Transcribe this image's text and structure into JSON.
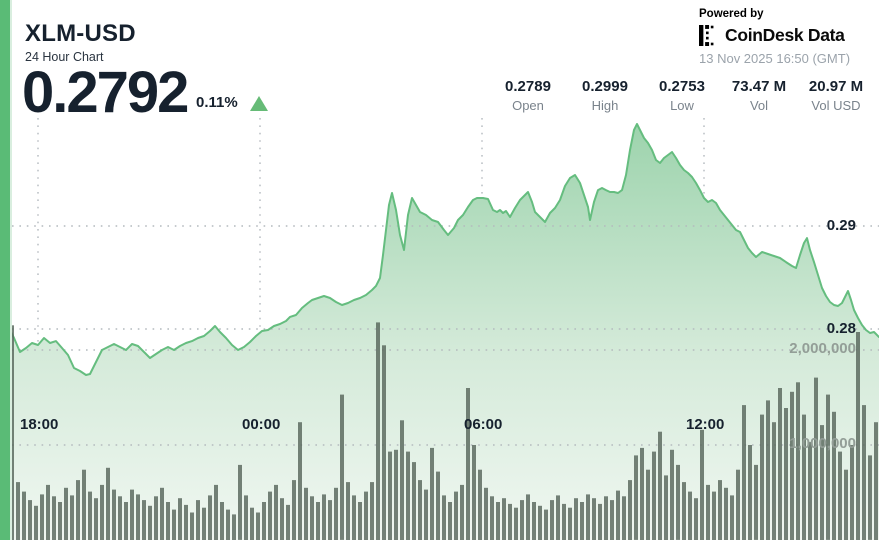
{
  "header": {
    "symbol": "XLM-USD",
    "subtitle": "24 Hour Chart",
    "price": "0.2792",
    "change_pct": "0.11%",
    "change_direction": "up",
    "powered_by": "Powered by",
    "brand": "CoinDesk Data",
    "timestamp": "13 Nov 2025 16:50 (GMT)"
  },
  "stats": [
    {
      "value": "0.2789",
      "label": "Open"
    },
    {
      "value": "0.2999",
      "label": "High"
    },
    {
      "value": "0.2753",
      "label": "Low"
    },
    {
      "value": "73.47 M",
      "label": "Vol"
    },
    {
      "value": "20.97 M",
      "label": "Vol USD"
    }
  ],
  "colors": {
    "accent_bar": "#5ABB76",
    "price_line": "#65BD7F",
    "area_top": "#9CD3AC",
    "area_mid": "#D4EAD9",
    "area_bottom": "#F0F7F1",
    "volume_bar": "rgba(88,102,92,0.82)",
    "grid": "#B4BABE",
    "text_dark": "#16212E",
    "text_gray": "#7A838C",
    "text_light_gray": "#9BA3AB",
    "up_triangle": "#66BB77"
  },
  "chart_data": {
    "type": "area",
    "title": "XLM-USD 24 Hour Chart",
    "open": 0.2789,
    "high": 0.2999,
    "low": 0.2753,
    "volume_total_millions": 73.47,
    "volume_usd_millions": 20.97,
    "grid": true,
    "legend": false,
    "price_axis": {
      "side": "right",
      "labels": [
        {
          "text": "0.29",
          "value": 0.29
        },
        {
          "text": "0.28",
          "value": 0.28
        }
      ]
    },
    "volume_axis": {
      "side": "right",
      "labels": [
        {
          "text": "2,000,000",
          "value_millions": 2
        },
        {
          "text": "1,000,000",
          "value_millions": 1
        }
      ]
    },
    "time_ticks": [
      "18:00",
      "00:00",
      "06:00",
      "12:00"
    ],
    "price_series": [
      [
        10,
        0.2799
      ],
      [
        14,
        0.27913
      ],
      [
        20,
        0.27777
      ],
      [
        26,
        0.27816
      ],
      [
        32,
        0.27864
      ],
      [
        38,
        0.27845
      ],
      [
        44,
        0.27913
      ],
      [
        50,
        0.27864
      ],
      [
        56,
        0.27883
      ],
      [
        62,
        0.27816
      ],
      [
        68,
        0.27748
      ],
      [
        74,
        0.27621
      ],
      [
        80,
        0.27592
      ],
      [
        86,
        0.27553
      ],
      [
        90,
        0.27563
      ],
      [
        96,
        0.2768
      ],
      [
        102,
        0.27796
      ],
      [
        108,
        0.27825
      ],
      [
        114,
        0.27854
      ],
      [
        120,
        0.27825
      ],
      [
        126,
        0.27796
      ],
      [
        132,
        0.27854
      ],
      [
        138,
        0.27835
      ],
      [
        144,
        0.27777
      ],
      [
        150,
        0.27718
      ],
      [
        156,
        0.27757
      ],
      [
        162,
        0.27796
      ],
      [
        168,
        0.27825
      ],
      [
        174,
        0.27796
      ],
      [
        180,
        0.27835
      ],
      [
        186,
        0.27864
      ],
      [
        192,
        0.27883
      ],
      [
        198,
        0.27913
      ],
      [
        204,
        0.27932
      ],
      [
        210,
        0.27981
      ],
      [
        215,
        0.28029
      ],
      [
        220,
        0.27971
      ],
      [
        226,
        0.27913
      ],
      [
        232,
        0.27845
      ],
      [
        238,
        0.27796
      ],
      [
        244,
        0.27825
      ],
      [
        250,
        0.27874
      ],
      [
        256,
        0.27932
      ],
      [
        262,
        0.27981
      ],
      [
        268,
        0.2799
      ],
      [
        274,
        0.28029
      ],
      [
        280,
        0.28049
      ],
      [
        286,
        0.28078
      ],
      [
        290,
        0.28117
      ],
      [
        296,
        0.28136
      ],
      [
        302,
        0.28204
      ],
      [
        308,
        0.28252
      ],
      [
        312,
        0.28282
      ],
      [
        318,
        0.28301
      ],
      [
        324,
        0.2832
      ],
      [
        330,
        0.28301
      ],
      [
        336,
        0.28262
      ],
      [
        342,
        0.28233
      ],
      [
        348,
        0.28252
      ],
      [
        354,
        0.28282
      ],
      [
        360,
        0.28301
      ],
      [
        366,
        0.2833
      ],
      [
        372,
        0.28379
      ],
      [
        376,
        0.28418
      ],
      [
        380,
        0.28495
      ],
      [
        383,
        0.28718
      ],
      [
        386,
        0.28961
      ],
      [
        389,
        0.29204
      ],
      [
        392,
        0.2932
      ],
      [
        396,
        0.29155
      ],
      [
        400,
        0.28913
      ],
      [
        404,
        0.28767
      ],
      [
        408,
        0.29107
      ],
      [
        412,
        0.29272
      ],
      [
        416,
        0.29204
      ],
      [
        420,
        0.29136
      ],
      [
        426,
        0.29107
      ],
      [
        432,
        0.29058
      ],
      [
        438,
        0.29039
      ],
      [
        444,
        0.28961
      ],
      [
        448,
        0.28913
      ],
      [
        454,
        0.28981
      ],
      [
        458,
        0.29058
      ],
      [
        463,
        0.29107
      ],
      [
        468,
        0.29184
      ],
      [
        473,
        0.29252
      ],
      [
        477,
        0.29272
      ],
      [
        483,
        0.29272
      ],
      [
        488,
        0.29262
      ],
      [
        493,
        0.29155
      ],
      [
        497,
        0.29136
      ],
      [
        500,
        0.29155
      ],
      [
        503,
        0.29126
      ],
      [
        506,
        0.29146
      ],
      [
        510,
        0.29087
      ],
      [
        515,
        0.29175
      ],
      [
        520,
        0.29252
      ],
      [
        524,
        0.29291
      ],
      [
        528,
        0.2933
      ],
      [
        532,
        0.29233
      ],
      [
        535,
        0.29136
      ],
      [
        540,
        0.29087
      ],
      [
        545,
        0.29039
      ],
      [
        550,
        0.29126
      ],
      [
        555,
        0.29175
      ],
      [
        560,
        0.29252
      ],
      [
        565,
        0.29388
      ],
      [
        570,
        0.29466
      ],
      [
        575,
        0.29495
      ],
      [
        580,
        0.29417
      ],
      [
        584,
        0.29301
      ],
      [
        588,
        0.29184
      ],
      [
        590,
        0.29058
      ],
      [
        594,
        0.29233
      ],
      [
        598,
        0.29349
      ],
      [
        602,
        0.29369
      ],
      [
        606,
        0.29349
      ],
      [
        610,
        0.2933
      ],
      [
        614,
        0.2933
      ],
      [
        618,
        0.2932
      ],
      [
        622,
        0.29349
      ],
      [
        626,
        0.29495
      ],
      [
        630,
        0.29738
      ],
      [
        634,
        0.29932
      ],
      [
        637,
        0.2999
      ],
      [
        640,
        0.29932
      ],
      [
        644,
        0.29854
      ],
      [
        648,
        0.29806
      ],
      [
        652,
        0.29738
      ],
      [
        656,
        0.29641
      ],
      [
        660,
        0.29612
      ],
      [
        664,
        0.2966
      ],
      [
        668,
        0.29689
      ],
      [
        672,
        0.29718
      ],
      [
        676,
        0.2966
      ],
      [
        680,
        0.29592
      ],
      [
        684,
        0.29544
      ],
      [
        688,
        0.29515
      ],
      [
        692,
        0.29476
      ],
      [
        696,
        0.29417
      ],
      [
        700,
        0.29349
      ],
      [
        704,
        0.29272
      ],
      [
        708,
        0.29233
      ],
      [
        712,
        0.29252
      ],
      [
        716,
        0.29223
      ],
      [
        720,
        0.29155
      ],
      [
        724,
        0.29107
      ],
      [
        728,
        0.29058
      ],
      [
        732,
        0.2901
      ],
      [
        736,
        0.28961
      ],
      [
        740,
        0.28942
      ],
      [
        744,
        0.28864
      ],
      [
        748,
        0.28786
      ],
      [
        752,
        0.28738
      ],
      [
        756,
        0.28699
      ],
      [
        762,
        0.28748
      ],
      [
        768,
        0.28728
      ],
      [
        774,
        0.28709
      ],
      [
        780,
        0.28689
      ],
      [
        786,
        0.2865
      ],
      [
        792,
        0.28612
      ],
      [
        796,
        0.28592
      ],
      [
        800,
        0.28718
      ],
      [
        804,
        0.28835
      ],
      [
        807,
        0.28883
      ],
      [
        810,
        0.28767
      ],
      [
        814,
        0.2865
      ],
      [
        818,
        0.28524
      ],
      [
        822,
        0.28398
      ],
      [
        826,
        0.2832
      ],
      [
        830,
        0.28262
      ],
      [
        834,
        0.28233
      ],
      [
        838,
        0.28223
      ],
      [
        842,
        0.28252
      ],
      [
        845,
        0.28311
      ],
      [
        848,
        0.28369
      ],
      [
        851,
        0.28282
      ],
      [
        854,
        0.28184
      ],
      [
        858,
        0.28107
      ],
      [
        862,
        0.28039
      ],
      [
        866,
        0.2799
      ],
      [
        870,
        0.27961
      ],
      [
        874,
        0.27971
      ],
      [
        879,
        0.27922
      ]
    ],
    "volume_series_millions": [
      2.26,
      0.61,
      0.51,
      0.42,
      0.36,
      0.48,
      0.58,
      0.46,
      0.4,
      0.55,
      0.47,
      0.63,
      0.74,
      0.51,
      0.44,
      0.58,
      0.76,
      0.53,
      0.46,
      0.4,
      0.53,
      0.48,
      0.42,
      0.36,
      0.46,
      0.55,
      0.4,
      0.32,
      0.44,
      0.37,
      0.29,
      0.42,
      0.34,
      0.47,
      0.58,
      0.4,
      0.32,
      0.27,
      0.79,
      0.47,
      0.34,
      0.29,
      0.4,
      0.51,
      0.58,
      0.44,
      0.37,
      0.63,
      1.24,
      0.55,
      0.46,
      0.4,
      0.48,
      0.42,
      0.55,
      1.53,
      0.61,
      0.47,
      0.4,
      0.51,
      0.61,
      2.29,
      2.05,
      0.93,
      0.95,
      1.26,
      0.93,
      0.82,
      0.63,
      0.53,
      0.97,
      0.72,
      0.47,
      0.4,
      0.51,
      0.58,
      1.6,
      1.0,
      0.74,
      0.55,
      0.46,
      0.4,
      0.44,
      0.38,
      0.34,
      0.42,
      0.48,
      0.4,
      0.36,
      0.32,
      0.42,
      0.47,
      0.38,
      0.34,
      0.44,
      0.4,
      0.48,
      0.44,
      0.38,
      0.46,
      0.42,
      0.52,
      0.46,
      0.63,
      0.89,
      0.97,
      0.74,
      0.93,
      1.14,
      0.68,
      0.95,
      0.79,
      0.61,
      0.51,
      0.44,
      1.16,
      0.58,
      0.51,
      0.63,
      0.55,
      0.47,
      0.74,
      1.42,
      1.0,
      0.79,
      1.32,
      1.47,
      1.24,
      1.6,
      1.39,
      1.56,
      1.66,
      1.32,
      1.03,
      1.71,
      1.21,
      1.53,
      1.35,
      0.93,
      0.74,
      1.0,
      2.19,
      1.42,
      0.89,
      1.24
    ]
  }
}
